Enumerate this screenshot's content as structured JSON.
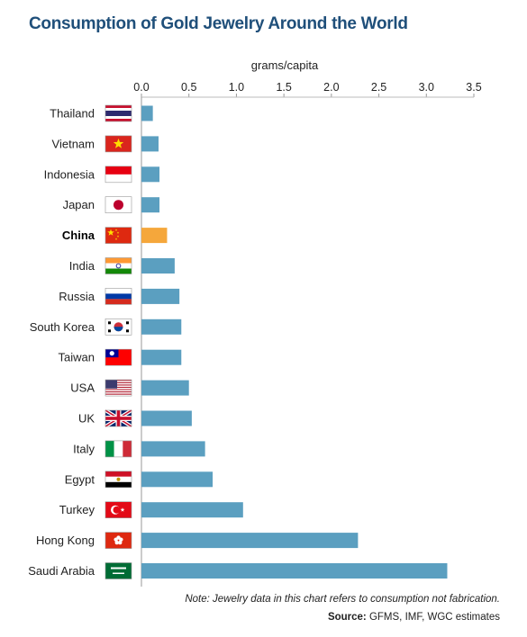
{
  "chart_data": {
    "type": "bar",
    "orientation": "horizontal",
    "title": "Consumption of Gold Jewelry Around the World",
    "xlabel": "grams/capita",
    "xlim": [
      0,
      3.5
    ],
    "ticks": [
      "0.0",
      "0.5",
      "1.0",
      "1.5",
      "2.0",
      "2.5",
      "3.0",
      "3.5"
    ],
    "tick_values": [
      0,
      0.5,
      1.0,
      1.5,
      2.0,
      2.5,
      3.0,
      3.5
    ],
    "legend": "none",
    "grid": false,
    "bar_color": "#5b9fc0",
    "highlight_color": "#f5a73b",
    "categories": [
      "Thailand",
      "Vietnam",
      "Indonesia",
      "Japan",
      "China",
      "India",
      "Russia",
      "South Korea",
      "Taiwan",
      "USA",
      "UK",
      "Italy",
      "Egypt",
      "Turkey",
      "Hong Kong",
      "Saudi Arabia"
    ],
    "values": [
      0.12,
      0.18,
      0.19,
      0.19,
      0.27,
      0.35,
      0.4,
      0.42,
      0.42,
      0.5,
      0.53,
      0.67,
      0.75,
      1.07,
      2.28,
      3.22
    ],
    "highlight": [
      "China"
    ],
    "flag_icons": [
      "thailand-flag-icon",
      "vietnam-flag-icon",
      "indonesia-flag-icon",
      "japan-flag-icon",
      "china-flag-icon",
      "india-flag-icon",
      "russia-flag-icon",
      "south-korea-flag-icon",
      "taiwan-flag-icon",
      "usa-flag-icon",
      "uk-flag-icon",
      "italy-flag-icon",
      "egypt-flag-icon",
      "turkey-flag-icon",
      "hong-kong-flag-icon",
      "saudi-arabia-flag-icon"
    ]
  },
  "footer": {
    "note": "Note: Jewelry data in this chart refers to consumption not fabrication.",
    "source_label": "Source:",
    "source_text": " GFMS, IMF, WGC estimates"
  }
}
